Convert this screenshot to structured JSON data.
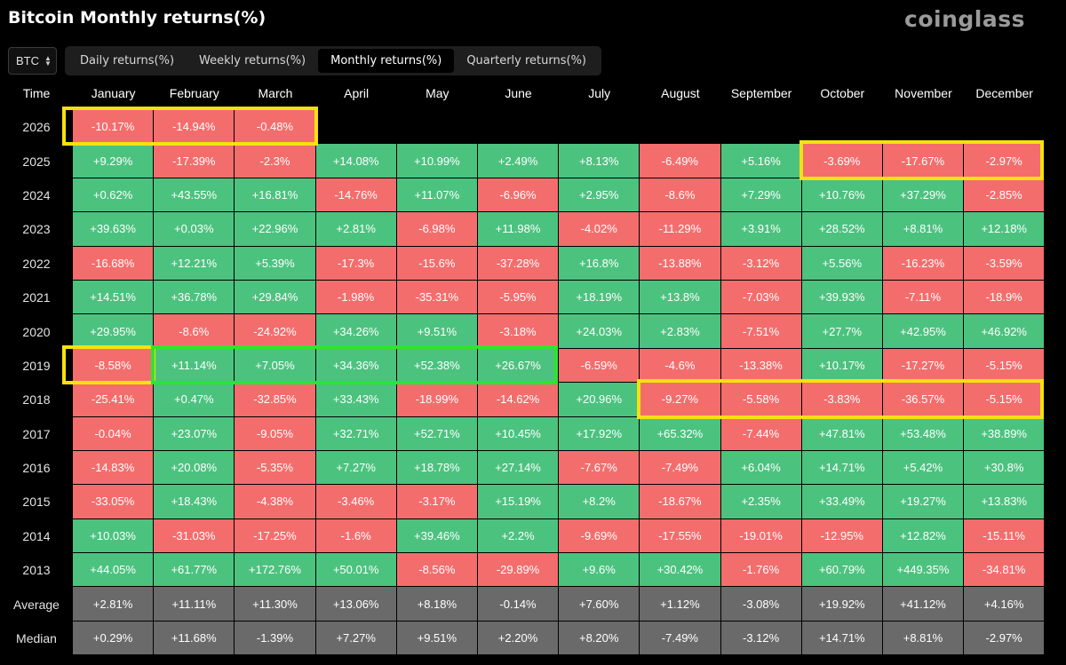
{
  "title": "Bitcoin Monthly returns(%)",
  "logo": "coinglass",
  "coin_select": {
    "value": "BTC"
  },
  "tabs": [
    {
      "label": "Daily returns(%)",
      "active": false
    },
    {
      "label": "Weekly returns(%)",
      "active": false
    },
    {
      "label": "Monthly returns(%)",
      "active": true
    },
    {
      "label": "Quarterly returns(%)",
      "active": false
    }
  ],
  "table": {
    "time_header": "Time",
    "months": [
      "January",
      "February",
      "March",
      "April",
      "May",
      "June",
      "July",
      "August",
      "September",
      "October",
      "November",
      "December"
    ],
    "rows": [
      {
        "year": "2026",
        "values": [
          "-10.17%",
          "-14.94%",
          "-0.48%",
          "",
          "",
          "",
          "",
          "",
          "",
          "",
          "",
          ""
        ]
      },
      {
        "year": "2025",
        "values": [
          "+9.29%",
          "-17.39%",
          "-2.3%",
          "+14.08%",
          "+10.99%",
          "+2.49%",
          "+8.13%",
          "-6.49%",
          "+5.16%",
          "-3.69%",
          "-17.67%",
          "-2.97%"
        ]
      },
      {
        "year": "2024",
        "values": [
          "+0.62%",
          "+43.55%",
          "+16.81%",
          "-14.76%",
          "+11.07%",
          "-6.96%",
          "+2.95%",
          "-8.6%",
          "+7.29%",
          "+10.76%",
          "+37.29%",
          "-2.85%"
        ]
      },
      {
        "year": "2023",
        "values": [
          "+39.63%",
          "+0.03%",
          "+22.96%",
          "+2.81%",
          "-6.98%",
          "+11.98%",
          "-4.02%",
          "-11.29%",
          "+3.91%",
          "+28.52%",
          "+8.81%",
          "+12.18%"
        ]
      },
      {
        "year": "2022",
        "values": [
          "-16.68%",
          "+12.21%",
          "+5.39%",
          "-17.3%",
          "-15.6%",
          "-37.28%",
          "+16.8%",
          "-13.88%",
          "-3.12%",
          "+5.56%",
          "-16.23%",
          "-3.59%"
        ]
      },
      {
        "year": "2021",
        "values": [
          "+14.51%",
          "+36.78%",
          "+29.84%",
          "-1.98%",
          "-35.31%",
          "-5.95%",
          "+18.19%",
          "+13.8%",
          "-7.03%",
          "+39.93%",
          "-7.11%",
          "-18.9%"
        ]
      },
      {
        "year": "2020",
        "values": [
          "+29.95%",
          "-8.6%",
          "-24.92%",
          "+34.26%",
          "+9.51%",
          "-3.18%",
          "+24.03%",
          "+2.83%",
          "-7.51%",
          "+27.7%",
          "+42.95%",
          "+46.92%"
        ]
      },
      {
        "year": "2019",
        "values": [
          "-8.58%",
          "+11.14%",
          "+7.05%",
          "+34.36%",
          "+52.38%",
          "+26.67%",
          "-6.59%",
          "-4.6%",
          "-13.38%",
          "+10.17%",
          "-17.27%",
          "-5.15%"
        ]
      },
      {
        "year": "2018",
        "values": [
          "-25.41%",
          "+0.47%",
          "-32.85%",
          "+33.43%",
          "-18.99%",
          "-14.62%",
          "+20.96%",
          "-9.27%",
          "-5.58%",
          "-3.83%",
          "-36.57%",
          "-5.15%"
        ]
      },
      {
        "year": "2017",
        "values": [
          "-0.04%",
          "+23.07%",
          "-9.05%",
          "+32.71%",
          "+52.71%",
          "+10.45%",
          "+17.92%",
          "+65.32%",
          "-7.44%",
          "+47.81%",
          "+53.48%",
          "+38.89%"
        ]
      },
      {
        "year": "2016",
        "values": [
          "-14.83%",
          "+20.08%",
          "-5.35%",
          "+7.27%",
          "+18.78%",
          "+27.14%",
          "-7.67%",
          "-7.49%",
          "+6.04%",
          "+14.71%",
          "+5.42%",
          "+30.8%"
        ]
      },
      {
        "year": "2015",
        "values": [
          "-33.05%",
          "+18.43%",
          "-4.38%",
          "-3.46%",
          "-3.17%",
          "+15.19%",
          "+8.2%",
          "-18.67%",
          "+2.35%",
          "+33.49%",
          "+19.27%",
          "+13.83%"
        ]
      },
      {
        "year": "2014",
        "values": [
          "+10.03%",
          "-31.03%",
          "-17.25%",
          "-1.6%",
          "+39.46%",
          "+2.2%",
          "-9.69%",
          "-17.55%",
          "-19.01%",
          "-12.95%",
          "+12.82%",
          "-15.11%"
        ]
      },
      {
        "year": "2013",
        "values": [
          "+44.05%",
          "+61.77%",
          "+172.76%",
          "+50.01%",
          "-8.56%",
          "-29.89%",
          "+9.6%",
          "+30.42%",
          "-1.76%",
          "+60.79%",
          "+449.35%",
          "-34.81%"
        ]
      }
    ],
    "summary_rows": [
      {
        "label": "Average",
        "values": [
          "+2.81%",
          "+11.11%",
          "+11.30%",
          "+13.06%",
          "+8.18%",
          "-0.14%",
          "+7.60%",
          "+1.12%",
          "-3.08%",
          "+19.92%",
          "+41.12%",
          "+4.16%"
        ]
      },
      {
        "label": "Median",
        "values": [
          "+0.29%",
          "+11.68%",
          "-1.39%",
          "+7.27%",
          "+9.51%",
          "+2.20%",
          "+8.20%",
          "-7.49%",
          "-3.12%",
          "+14.71%",
          "+8.81%",
          "-2.97%"
        ]
      }
    ]
  },
  "colors": {
    "positive": "#4cc27f",
    "negative": "#f46d6d",
    "summary": "#6a6a6a",
    "highlight_yellow": "#f7e10f",
    "highlight_green": "#2ee52e"
  },
  "highlights": [
    {
      "color": "yellow",
      "year": "2026",
      "from_month": "January",
      "to_month": "March"
    },
    {
      "color": "yellow",
      "year": "2025",
      "from_month": "October",
      "to_month": "December"
    },
    {
      "color": "yellow",
      "year": "2019",
      "from_month": "January",
      "to_month": "January"
    },
    {
      "color": "green",
      "year": "2019",
      "from_month": "February",
      "to_month": "June"
    },
    {
      "color": "yellow",
      "year": "2018",
      "from_month": "August",
      "to_month": "December"
    }
  ]
}
